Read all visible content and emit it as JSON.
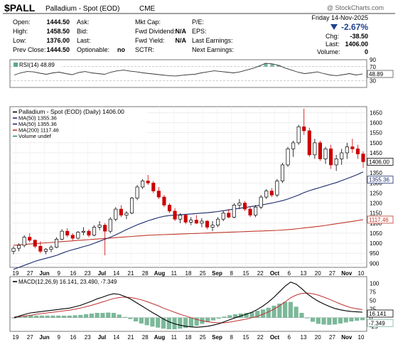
{
  "header": {
    "symbol": "$PALL",
    "description": "Palladium - Spot (EOD)",
    "exchange": "CME",
    "watermark": "@ StockCharts.com",
    "date": "Friday 14-Nov-2025",
    "change_pct": "-2.67%",
    "change_label": "Chg:",
    "change_value": "-38.50",
    "last_label": "Last:",
    "last_value": "1406.00",
    "volume_label": "Volume:",
    "volume_value": "0",
    "quotes": [
      {
        "label": "Open:",
        "value": "1444.50"
      },
      {
        "label": "High:",
        "value": "1458.50"
      },
      {
        "label": "Low:",
        "value": "1376.00"
      },
      {
        "label": "Prev Close:",
        "value": "1444.50"
      }
    ],
    "quotes_b": [
      "Ask:",
      "Bid:",
      "Last:",
      "Optionable:"
    ],
    "optionable_value": "no",
    "fundamentals_a": [
      {
        "label": "Mkt Cap:",
        "value": ""
      },
      {
        "label": "Fwd Dividend:",
        "value": "N/A"
      },
      {
        "label": "Fwd Yield:",
        "value": "N/A"
      },
      {
        "label": "SCTR:",
        "value": ""
      }
    ],
    "fundamentals_b": [
      "P/E:",
      "EPS:",
      "Last Earnings:",
      "Next Earnings:"
    ]
  },
  "colors": {
    "up": "#000000",
    "down": "#cc0000",
    "ma50": "#1a2a6c",
    "ma200": "#c0392b",
    "rsi": "#333333",
    "macd_line": "#000000",
    "signal_line": "#c03030",
    "histogram": "#7cb89a",
    "rsi_fill": "#5aa88a"
  },
  "chart_data": [
    {
      "type": "line",
      "panel": "RSI",
      "legend": "RSI(14) 48.89",
      "ylim": [
        10,
        90
      ],
      "yticks": [
        30,
        50,
        70,
        90
      ],
      "guides": [
        30,
        70
      ],
      "last_label": "48.89",
      "series": [
        {
          "name": "RSI(14)",
          "values": [
            46,
            52,
            56,
            55,
            51,
            48,
            52,
            54,
            50,
            47,
            53,
            56,
            52,
            50,
            48,
            54,
            58,
            60,
            57,
            55,
            52,
            50,
            48,
            46,
            44,
            43,
            45,
            47,
            48,
            52,
            55,
            58,
            56,
            54,
            52,
            55,
            60,
            65,
            72,
            80,
            78,
            74,
            66,
            60,
            54,
            50,
            52,
            55,
            50,
            46,
            44,
            47,
            50,
            46,
            49
          ]
        }
      ]
    },
    {
      "type": "candlestick",
      "panel": "Price",
      "legend": [
        "Palladium - Spot (EOD) (Daily) 1406.00",
        "MA(50) 1355.36",
        "MA(50) 1355.36",
        "MA(200) 1117.46",
        "Volume undef"
      ],
      "ylim": [
        880,
        1680
      ],
      "yticks": [
        900,
        950,
        1000,
        1050,
        1100,
        1150,
        1200,
        1250,
        1300,
        1350,
        1400,
        1450,
        1500,
        1550,
        1600,
        1650
      ],
      "x_labels": [
        "19",
        "27",
        "Jun",
        "9",
        "16",
        "23",
        "Jul",
        "14",
        "21",
        "28",
        "Aug",
        "11",
        "18",
        "25",
        "Sep",
        "8",
        "15",
        "22",
        "Oct",
        "6",
        "13",
        "20",
        "27",
        "Nov",
        "10"
      ],
      "bold_x_labels": [
        "Jun",
        "Jul",
        "Aug",
        "Sep",
        "Oct",
        "Nov"
      ],
      "last_labels": {
        "close": "1406.00",
        "ma50": "1355.36",
        "ma200": "1117.46"
      },
      "ohlc": [
        {
          "o": 960,
          "h": 985,
          "l": 945,
          "c": 975
        },
        {
          "o": 975,
          "h": 1000,
          "l": 960,
          "c": 990
        },
        {
          "o": 990,
          "h": 1040,
          "l": 980,
          "c": 1030
        },
        {
          "o": 1030,
          "h": 1050,
          "l": 1005,
          "c": 1015
        },
        {
          "o": 1015,
          "h": 1020,
          "l": 975,
          "c": 985
        },
        {
          "o": 985,
          "h": 1010,
          "l": 950,
          "c": 960
        },
        {
          "o": 960,
          "h": 975,
          "l": 945,
          "c": 970
        },
        {
          "o": 970,
          "h": 990,
          "l": 955,
          "c": 980
        },
        {
          "o": 980,
          "h": 1030,
          "l": 975,
          "c": 1020
        },
        {
          "o": 1020,
          "h": 1070,
          "l": 1015,
          "c": 1060
        },
        {
          "o": 1060,
          "h": 1075,
          "l": 1030,
          "c": 1040
        },
        {
          "o": 1040,
          "h": 1050,
          "l": 1015,
          "c": 1025
        },
        {
          "o": 1025,
          "h": 1060,
          "l": 1020,
          "c": 1055
        },
        {
          "o": 1055,
          "h": 1080,
          "l": 1040,
          "c": 1060
        },
        {
          "o": 1060,
          "h": 1070,
          "l": 1030,
          "c": 1040
        },
        {
          "o": 1040,
          "h": 1090,
          "l": 1035,
          "c": 1080
        },
        {
          "o": 1080,
          "h": 1110,
          "l": 1065,
          "c": 1090
        },
        {
          "o": 1090,
          "h": 1100,
          "l": 940,
          "c": 1060
        },
        {
          "o": 1060,
          "h": 1130,
          "l": 1050,
          "c": 1120
        },
        {
          "o": 1120,
          "h": 1180,
          "l": 1110,
          "c": 1170
        },
        {
          "o": 1170,
          "h": 1190,
          "l": 1130,
          "c": 1140
        },
        {
          "o": 1140,
          "h": 1160,
          "l": 1120,
          "c": 1150
        },
        {
          "o": 1150,
          "h": 1230,
          "l": 1145,
          "c": 1225
        },
        {
          "o": 1225,
          "h": 1290,
          "l": 1215,
          "c": 1280
        },
        {
          "o": 1280,
          "h": 1320,
          "l": 1270,
          "c": 1310
        },
        {
          "o": 1310,
          "h": 1340,
          "l": 1290,
          "c": 1300
        },
        {
          "o": 1300,
          "h": 1310,
          "l": 1250,
          "c": 1260
        },
        {
          "o": 1260,
          "h": 1280,
          "l": 1220,
          "c": 1230
        },
        {
          "o": 1230,
          "h": 1240,
          "l": 1180,
          "c": 1190
        },
        {
          "o": 1190,
          "h": 1200,
          "l": 1150,
          "c": 1160
        },
        {
          "o": 1160,
          "h": 1175,
          "l": 1110,
          "c": 1120
        },
        {
          "o": 1120,
          "h": 1150,
          "l": 1100,
          "c": 1140
        },
        {
          "o": 1140,
          "h": 1145,
          "l": 1095,
          "c": 1105
        },
        {
          "o": 1105,
          "h": 1130,
          "l": 1090,
          "c": 1115
        },
        {
          "o": 1115,
          "h": 1140,
          "l": 1095,
          "c": 1100
        },
        {
          "o": 1100,
          "h": 1125,
          "l": 1080,
          "c": 1110
        },
        {
          "o": 1110,
          "h": 1115,
          "l": 1070,
          "c": 1080
        },
        {
          "o": 1080,
          "h": 1110,
          "l": 1060,
          "c": 1090
        },
        {
          "o": 1090,
          "h": 1130,
          "l": 1080,
          "c": 1120
        },
        {
          "o": 1120,
          "h": 1160,
          "l": 1110,
          "c": 1150
        },
        {
          "o": 1150,
          "h": 1170,
          "l": 1125,
          "c": 1130
        },
        {
          "o": 1130,
          "h": 1200,
          "l": 1125,
          "c": 1190
        },
        {
          "o": 1190,
          "h": 1220,
          "l": 1170,
          "c": 1200
        },
        {
          "o": 1200,
          "h": 1210,
          "l": 1160,
          "c": 1170
        },
        {
          "o": 1170,
          "h": 1180,
          "l": 1130,
          "c": 1140
        },
        {
          "o": 1140,
          "h": 1190,
          "l": 1130,
          "c": 1180
        },
        {
          "o": 1180,
          "h": 1240,
          "l": 1170,
          "c": 1230
        },
        {
          "o": 1230,
          "h": 1270,
          "l": 1220,
          "c": 1260
        },
        {
          "o": 1260,
          "h": 1275,
          "l": 1230,
          "c": 1240
        },
        {
          "o": 1240,
          "h": 1320,
          "l": 1230,
          "c": 1310
        },
        {
          "o": 1310,
          "h": 1400,
          "l": 1300,
          "c": 1390
        },
        {
          "o": 1390,
          "h": 1480,
          "l": 1380,
          "c": 1470
        },
        {
          "o": 1470,
          "h": 1510,
          "l": 1430,
          "c": 1500
        },
        {
          "o": 1500,
          "h": 1590,
          "l": 1490,
          "c": 1580
        },
        {
          "o": 1580,
          "h": 1670,
          "l": 1540,
          "c": 1560
        },
        {
          "o": 1560,
          "h": 1575,
          "l": 1430,
          "c": 1440
        },
        {
          "o": 1440,
          "h": 1520,
          "l": 1420,
          "c": 1500
        },
        {
          "o": 1500,
          "h": 1510,
          "l": 1410,
          "c": 1420
        },
        {
          "o": 1420,
          "h": 1480,
          "l": 1395,
          "c": 1470
        },
        {
          "o": 1470,
          "h": 1490,
          "l": 1370,
          "c": 1390
        },
        {
          "o": 1390,
          "h": 1440,
          "l": 1360,
          "c": 1420
        },
        {
          "o": 1420,
          "h": 1470,
          "l": 1390,
          "c": 1450
        },
        {
          "o": 1450,
          "h": 1500,
          "l": 1420,
          "c": 1480
        },
        {
          "o": 1480,
          "h": 1520,
          "l": 1450,
          "c": 1470
        },
        {
          "o": 1470,
          "h": 1490,
          "l": 1420,
          "c": 1444.5
        },
        {
          "o": 1444.5,
          "h": 1458.5,
          "l": 1376,
          "c": 1406
        }
      ],
      "ma50": [
        870,
        880,
        890,
        900,
        910,
        918,
        925,
        932,
        940,
        950,
        960,
        968,
        975,
        983,
        990,
        1000,
        1010,
        1020,
        1030,
        1042,
        1055,
        1068,
        1080,
        1092,
        1102,
        1112,
        1120,
        1128,
        1134,
        1138,
        1140,
        1142,
        1144,
        1146,
        1148,
        1150,
        1152,
        1155,
        1158,
        1162,
        1166,
        1170,
        1174,
        1178,
        1182,
        1186,
        1190,
        1195,
        1200,
        1206,
        1212,
        1220,
        1230,
        1240,
        1252,
        1262,
        1270,
        1278,
        1286,
        1294,
        1302,
        1312,
        1322,
        1332,
        1343,
        1355.36
      ],
      "ma200": [
        990,
        992,
        994,
        996,
        998,
        1000,
        1002,
        1004,
        1006,
        1008,
        1010,
        1012,
        1014,
        1016,
        1018,
        1020,
        1022,
        1024,
        1026,
        1028,
        1030,
        1032,
        1034,
        1036,
        1038,
        1040,
        1041,
        1042,
        1043,
        1044,
        1045,
        1046,
        1047,
        1048,
        1049,
        1050,
        1051,
        1052,
        1053,
        1054,
        1055,
        1056,
        1057,
        1058,
        1059,
        1060,
        1061,
        1062,
        1063,
        1064,
        1066,
        1068,
        1070,
        1073,
        1076,
        1079,
        1082,
        1085,
        1089,
        1093,
        1097,
        1101,
        1105,
        1109,
        1113,
        1117.46
      ]
    },
    {
      "type": "line",
      "panel": "MACD",
      "legend": "MACD(12,26,9) 16.141, 23.490, -7.349",
      "ylim": [
        -40,
        120
      ],
      "yticks": [
        -25,
        0,
        25,
        50,
        75,
        100
      ],
      "last_labels": {
        "macd": "16.141",
        "histogram": "-7.349"
      },
      "series": [
        {
          "name": "MACD(12,26,9)",
          "values": [
            0,
            5,
            10,
            14,
            16,
            18,
            20,
            22,
            24,
            26,
            28,
            32,
            36,
            42,
            48,
            55,
            60,
            66,
            70,
            68,
            62,
            55,
            45,
            35,
            25,
            15,
            6,
            -4,
            -12,
            -18,
            -22,
            -25,
            -27,
            -28,
            -27,
            -25,
            -22,
            -18,
            -12,
            -6,
            0,
            5,
            10,
            16,
            24,
            34,
            46,
            60,
            76,
            92,
            104,
            98,
            85,
            70,
            58,
            48,
            40,
            33,
            27,
            23,
            20,
            18,
            17,
            16.141
          ]
        },
        {
          "name": "Signal",
          "values": [
            2,
            3,
            5,
            7,
            10,
            12,
            14,
            16,
            18,
            20,
            22,
            25,
            28,
            32,
            36,
            41,
            46,
            51,
            56,
            59,
            60,
            59,
            56,
            52,
            47,
            41,
            35,
            28,
            22,
            16,
            10,
            5,
            0,
            -5,
            -9,
            -12,
            -14,
            -15,
            -15,
            -13,
            -10,
            -7,
            -4,
            0,
            4,
            10,
            17,
            25,
            35,
            46,
            58,
            66,
            71,
            72,
            70,
            66,
            60,
            54,
            47,
            40,
            34,
            29,
            26,
            23.49
          ]
        },
        {
          "name": "Histogram",
          "values": [
            -2,
            2,
            5,
            7,
            6,
            6,
            6,
            6,
            6,
            6,
            6,
            7,
            8,
            10,
            12,
            14,
            14,
            15,
            14,
            9,
            2,
            -4,
            -11,
            -17,
            -22,
            -26,
            -29,
            -32,
            -34,
            -34,
            -32,
            -30,
            -27,
            -23,
            -18,
            -13,
            -8,
            -3,
            3,
            7,
            10,
            12,
            14,
            16,
            20,
            24,
            29,
            35,
            41,
            46,
            46,
            32,
            14,
            -2,
            -12,
            -18,
            -20,
            -21,
            -20,
            -17,
            -14,
            -11,
            -9,
            -7.349
          ]
        }
      ],
      "x_labels": [
        "19",
        "27",
        "Jun",
        "9",
        "16",
        "23",
        "Jul",
        "14",
        "21",
        "28",
        "Aug",
        "11",
        "18",
        "25",
        "Sep",
        "8",
        "15",
        "22",
        "Oct",
        "6",
        "13",
        "20",
        "27",
        "Nov",
        "10"
      ]
    }
  ]
}
